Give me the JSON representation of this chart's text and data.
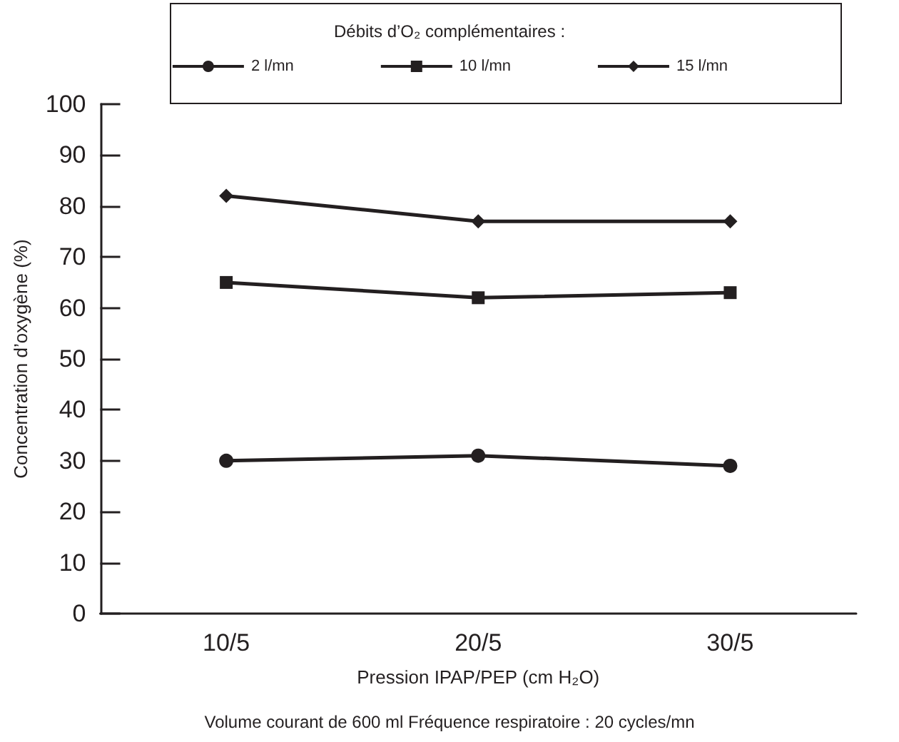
{
  "chart_data": {
    "type": "line",
    "legend_title": "Débits d’O₂ complémentaires :",
    "legend": "top",
    "grid": false,
    "line_style": "solid",
    "xlabel": "Pression IPAP/PEP (cm H₂O)",
    "ylabel": "Concentration d’oxygène (%)",
    "annotations": [
      "Volume courant de 600 ml Fréquence respiratoire : 20 cycles/mn"
    ],
    "categories": [
      "10/5",
      "20/5",
      "30/5"
    ],
    "ylim": [
      0,
      100
    ],
    "yticks": [
      0,
      10,
      20,
      30,
      40,
      50,
      60,
      70,
      80,
      90,
      100
    ],
    "series": [
      {
        "name": "2 l/mn",
        "color": "#231f20",
        "marker": "circle",
        "values": [
          30,
          31,
          29
        ]
      },
      {
        "name": "10 l/mn",
        "color": "#231f20",
        "marker": "square",
        "values": [
          65,
          62,
          63
        ]
      },
      {
        "name": "15 l/mn",
        "color": "#231f20",
        "marker": "diamond",
        "values": [
          82,
          77,
          77
        ]
      }
    ]
  }
}
